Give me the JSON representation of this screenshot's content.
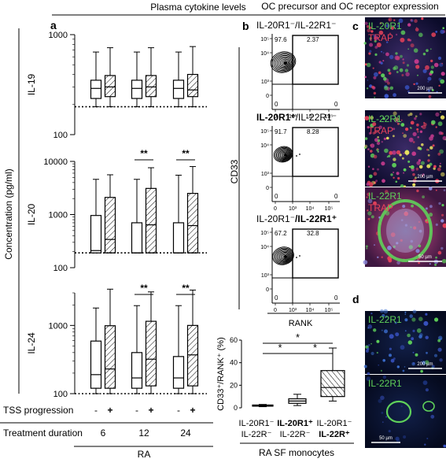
{
  "headings": {
    "left": "Plasma cytokine levels",
    "right": "OC precursor and OC receptor expression"
  },
  "panel_letters": [
    "a",
    "b",
    "c",
    "d"
  ],
  "panel_a": {
    "ylabel": "Concentration (pg/ml)",
    "tss_label": "TSS progression",
    "duration_label": "Treatment duration",
    "group_label": "RA",
    "tss_values": [
      "-",
      "+",
      "-",
      "+",
      "-",
      "+"
    ],
    "durations": [
      "6",
      "12",
      "24"
    ],
    "significance": "**"
  },
  "chart_data": [
    {
      "type": "box",
      "panel": "a",
      "row_label": "IL-19",
      "yscale": "log",
      "ylim": [
        100,
        1000
      ],
      "yticks": [
        "1000",
        "100"
      ],
      "categories": [
        "6 -",
        "6 +",
        "12 -",
        "12 +",
        "24 -",
        "24 +"
      ],
      "hatched": [
        false,
        true,
        false,
        true,
        false,
        true
      ],
      "boxes": [
        {
          "min": 190,
          "q1": 230,
          "median": 290,
          "q3": 350,
          "max": 670
        },
        {
          "min": 190,
          "q1": 240,
          "median": 300,
          "q3": 390,
          "max": 740
        },
        {
          "min": 190,
          "q1": 230,
          "median": 290,
          "q3": 350,
          "max": 670
        },
        {
          "min": 190,
          "q1": 240,
          "median": 300,
          "q3": 390,
          "max": 740
        },
        {
          "min": 190,
          "q1": 230,
          "median": 290,
          "q3": 350,
          "max": 670
        },
        {
          "min": 190,
          "q1": 240,
          "median": 280,
          "q3": 400,
          "max": 760
        }
      ],
      "dotted_line": 190,
      "significance": []
    },
    {
      "type": "box",
      "panel": "a",
      "row_label": "IL-20",
      "yscale": "log",
      "ylim": [
        100,
        10000
      ],
      "yticks": [
        "10000",
        "1000",
        "100"
      ],
      "categories": [
        "6 -",
        "6 +",
        "12 -",
        "12 +",
        "24 -",
        "24 +"
      ],
      "hatched": [
        false,
        true,
        false,
        true,
        false,
        true
      ],
      "boxes": [
        {
          "min": 190,
          "q1": 190,
          "median": 210,
          "q3": 960,
          "max": 4600
        },
        {
          "min": 190,
          "q1": 190,
          "median": 340,
          "q3": 2100,
          "max": 5600
        },
        {
          "min": 190,
          "q1": 190,
          "median": 190,
          "q3": 700,
          "max": 4600
        },
        {
          "min": 190,
          "q1": 190,
          "median": 640,
          "q3": 3100,
          "max": 7600
        },
        {
          "min": 190,
          "q1": 190,
          "median": 190,
          "q3": 700,
          "max": 5500
        },
        {
          "min": 190,
          "q1": 190,
          "median": 620,
          "q3": 2500,
          "max": 8000
        }
      ],
      "dotted_line": 190,
      "significance": [
        [
          2,
          3
        ],
        [
          4,
          5
        ]
      ]
    },
    {
      "type": "box",
      "panel": "a",
      "row_label": "IL-24",
      "yscale": "log",
      "ylim": [
        100,
        3000
      ],
      "yticks": [
        "1000",
        "100"
      ],
      "categories": [
        "6 -",
        "6 +",
        "12 -",
        "12 +",
        "24 -",
        "24 +"
      ],
      "hatched": [
        false,
        true,
        false,
        true,
        false,
        true
      ],
      "boxes": [
        {
          "min": 100,
          "q1": 120,
          "median": 190,
          "q3": 590,
          "max": 1800
        },
        {
          "min": 100,
          "q1": 120,
          "median": 230,
          "q3": 990,
          "max": 3400
        },
        {
          "min": 100,
          "q1": 120,
          "median": 170,
          "q3": 400,
          "max": 1950
        },
        {
          "min": 100,
          "q1": 130,
          "median": 320,
          "q3": 1150,
          "max": 3100
        },
        {
          "min": 100,
          "q1": 120,
          "median": 170,
          "q3": 350,
          "max": 1950
        },
        {
          "min": 100,
          "q1": 130,
          "median": 370,
          "q3": 1000,
          "max": 3300
        }
      ],
      "dotted_line": 100,
      "significance": [
        [
          2,
          3
        ],
        [
          4,
          5
        ]
      ]
    },
    {
      "type": "box",
      "panel": "b",
      "ylabel": "CD33⁺/RANK⁺ (%)",
      "yscale": "linear",
      "ylim": [
        0,
        60
      ],
      "yticks": [
        "60",
        "40",
        "20",
        "0"
      ],
      "categories": [
        "IL-20R1⁻ IL-22R⁻",
        "IL-20R1⁺ IL-22R⁻",
        "IL-20R1⁻ IL-22R⁺"
      ],
      "hatched": [
        false,
        false,
        true
      ],
      "boxes": [
        {
          "min": 1,
          "q1": 1.5,
          "median": 2,
          "q3": 2.5,
          "max": 3
        },
        {
          "min": 2,
          "q1": 4,
          "median": 6,
          "q3": 8,
          "max": 12
        },
        {
          "min": 6,
          "q1": 10,
          "median": 18,
          "q3": 33,
          "max": 53
        }
      ],
      "significance": [
        "*",
        "*",
        "*"
      ],
      "group_label": "RA SF monocytes"
    }
  ],
  "flow": {
    "ylabel": "CD33",
    "xlabel": "RANK",
    "plots": [
      {
        "title_a": "IL-20R1",
        "title_a_sup": "⁻",
        "title_sep": "/IL-22R1",
        "title_b_sup": "⁻",
        "bold_a": false,
        "bold_b": false,
        "ul": "97.6",
        "ur": "2.37",
        "ll": "0",
        "lr": "0"
      },
      {
        "title_a": "IL-20R1",
        "title_a_sup": "⁺",
        "title_sep": "/IL-22R1",
        "title_b_sup": "⁻",
        "bold_a": true,
        "bold_b": false,
        "ul": "91.7",
        "ur": "8.28",
        "ll": "0",
        "lr": "0"
      },
      {
        "title_a": "IL-20R1",
        "title_a_sup": "⁻",
        "title_sep": "/IL-22R1",
        "title_b_sup": "⁺",
        "bold_a": false,
        "bold_b": true,
        "ul": "67.2",
        "ur": "32.8",
        "ll": "0",
        "lr": "0"
      }
    ],
    "axis_ticks": [
      "10⁵",
      "10⁴",
      "10³",
      "0",
      "10³",
      "10⁴",
      "10⁵"
    ]
  },
  "micrographs": {
    "c": [
      {
        "label_green": "IL-20R1",
        "label_red": "TRAP",
        "scale": "200 µm"
      },
      {
        "label_green": "IL-22R1",
        "label_red": "TRAP",
        "scale": "200 µm"
      },
      {
        "label_green": "IL-22R1",
        "label_red": "TRAP",
        "scale": "50 µm"
      }
    ],
    "d": [
      {
        "label_green": "IL-22R1",
        "scale": "200 µm"
      },
      {
        "label_green": "IL-22R1",
        "scale": "50 µm"
      }
    ]
  },
  "b_xlabels": [
    {
      "l1": "IL-20R1⁻",
      "l2": "IL-22R⁻",
      "bold1": false,
      "bold2": false
    },
    {
      "l1": "IL-20R1⁺",
      "l2": "IL-22R⁻",
      "bold1": true,
      "bold2": false
    },
    {
      "l1": "IL-20R1⁻",
      "l2": "IL-22R⁺",
      "bold1": false,
      "bold2": true
    }
  ],
  "colors": {
    "green": "#5fd15a",
    "red": "#e8425a",
    "blue": "#3a55c8",
    "ink": "#000000"
  }
}
